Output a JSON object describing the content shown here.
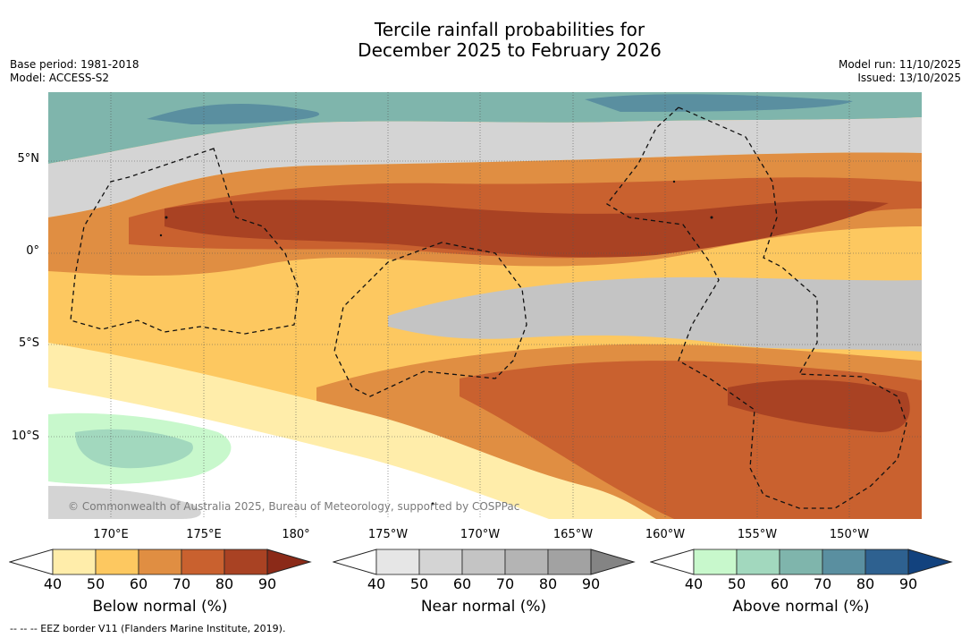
{
  "title": {
    "line1": "Tercile rainfall probabilities for",
    "line2": "December 2025 to February 2026"
  },
  "meta": {
    "base_period": "Base period: 1981-2018",
    "model": "Model: ACCESS-S2",
    "model_run": "Model run: 11/10/2025",
    "issued": "Issued: 13/10/2025"
  },
  "map": {
    "lat_labels": [
      "5°N",
      "0°",
      "5°S",
      "10°S"
    ],
    "lon_labels": [
      "170°E",
      "175°E",
      "180°",
      "175°W",
      "170°W",
      "165°W",
      "160°W",
      "155°W",
      "150°W"
    ],
    "copyright": "© Commonwealth of Australia 2025, Bureau of Meteorology, supported by COSPPac"
  },
  "colorbars": [
    {
      "name": "below",
      "label": "Below normal (%)",
      "ticks": [
        "40",
        "50",
        "60",
        "70",
        "80",
        "90"
      ],
      "colors": [
        "#ffedaa",
        "#fdc860",
        "#e08e42",
        "#c9612f",
        "#a94223",
        "#8b2a18"
      ]
    },
    {
      "name": "near",
      "label": "Near normal (%)",
      "ticks": [
        "40",
        "50",
        "60",
        "70",
        "80",
        "90"
      ],
      "colors": [
        "#e6e6e6",
        "#d4d4d4",
        "#c4c4c4",
        "#b4b4b4",
        "#a2a2a2",
        "#848484"
      ]
    },
    {
      "name": "above",
      "label": "Above normal (%)",
      "ticks": [
        "40",
        "50",
        "60",
        "70",
        "80",
        "90"
      ],
      "colors": [
        "#c8f8cc",
        "#a2d8be",
        "#7fb5ac",
        "#5a8fa0",
        "#2e6190",
        "#12427e"
      ]
    }
  ],
  "footer": "-- -- -- EEZ border V11 (Flanders Marine Institute, 2019)."
}
